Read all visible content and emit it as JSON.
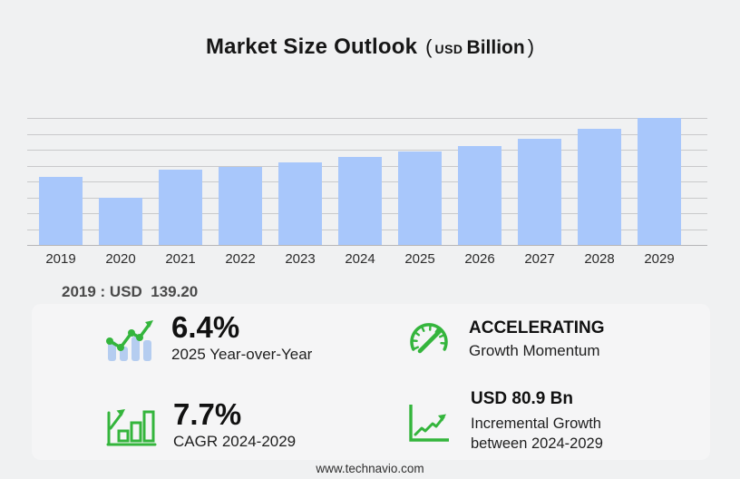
{
  "title": {
    "main": "Market Size Outlook",
    "paren_open": "(",
    "currency": "USD",
    "unit": "Billion",
    "paren_close": ")"
  },
  "chart_data": {
    "type": "bar",
    "title": "Market Size Outlook (USD Billion)",
    "unit": "USD Billion",
    "categories": [
      "2019",
      "2020",
      "2021",
      "2022",
      "2023",
      "2024",
      "2025",
      "2026",
      "2027",
      "2028",
      "2029"
    ],
    "values": [
      139.2,
      96.5,
      154.0,
      160.5,
      169.0,
      180.1,
      191.6,
      204.0,
      219.0,
      238.0,
      261.0
    ],
    "ylim": [
      0,
      261
    ],
    "grid": true,
    "grid_divisions": 8,
    "legend_position": "none",
    "annotations": [
      "2019 : USD 139.20"
    ]
  },
  "annotation": {
    "text": "2019 : USD  139.20"
  },
  "stats": [
    {
      "value": "6.4%",
      "label": "2025 Year-over-Year",
      "icon": "bar-trend-up-icon"
    },
    {
      "value": "ACCELERATING",
      "label": "Growth Momentum",
      "icon": "speedometer-icon"
    },
    {
      "value": "7.7%",
      "label": "CAGR 2024-2029",
      "icon": "outlined-bars-arrow-icon"
    },
    {
      "value": "USD 80.9 Bn",
      "label": "Incremental Growth between 2024-2029",
      "icon": "line-chart-arrow-icon"
    }
  ],
  "footer": {
    "website": "www.technavio.com"
  },
  "colors": {
    "background": "#f0f1f2",
    "panel": "#f5f5f6",
    "bar_blue": "#a8c7fb",
    "icon_bar_blue": "#b5cdf0",
    "accent_green": "#34b53c",
    "grid_line": "#c9c9cb",
    "axis_line": "#b5b5b7"
  }
}
